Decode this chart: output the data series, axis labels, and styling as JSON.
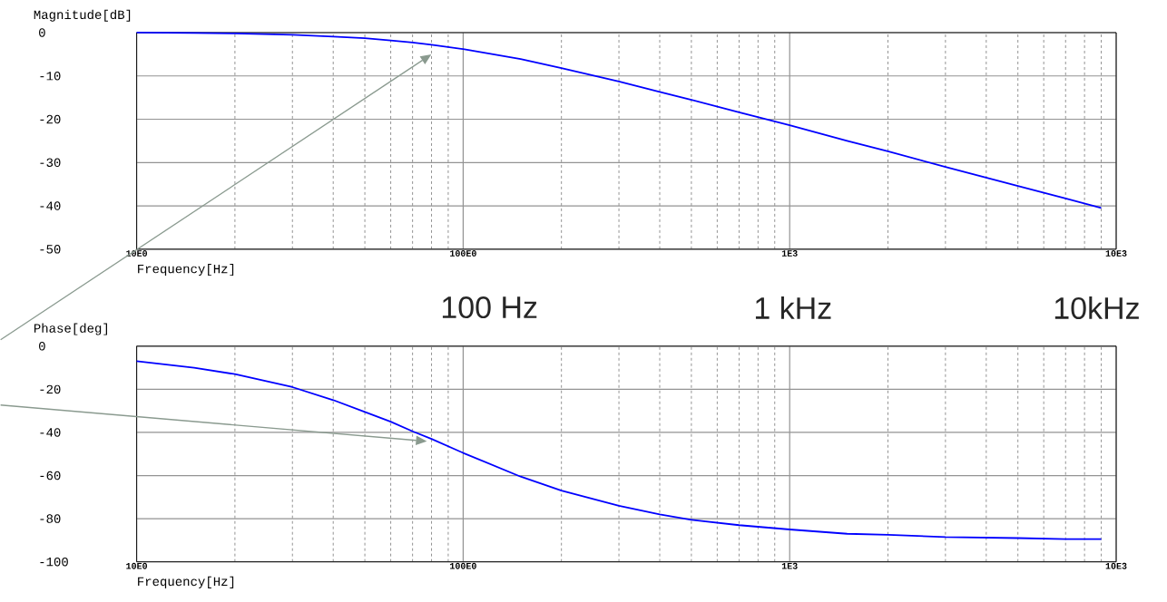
{
  "chart_data": [
    {
      "type": "line",
      "ylabel": "Magnitude[dB]",
      "xlabel": "Frequency[Hz]",
      "log": "x",
      "grid": true,
      "xlim": [
        10,
        10000
      ],
      "ylim": [
        -50,
        0
      ],
      "xticks": [
        {
          "value": 10,
          "label": "10E0"
        },
        {
          "value": 100,
          "label": "100E0"
        },
        {
          "value": 1000,
          "label": "1E3"
        },
        {
          "value": 10000,
          "label": "10E3"
        }
      ],
      "yticks": [
        0,
        -10,
        -20,
        -30,
        -40,
        -50
      ],
      "annotations": [
        "100 Hz",
        "1 kHz",
        "10kHz"
      ],
      "series": [
        {
          "color": "#0000ff",
          "x": [
            10,
            15,
            20,
            30,
            40,
            50,
            60,
            70,
            80,
            100,
            150,
            200,
            300,
            400,
            500,
            700,
            1000,
            1500,
            2000,
            3000,
            5000,
            7000,
            9000
          ],
          "values": [
            0,
            -0.1,
            -0.2,
            -0.5,
            -0.9,
            -1.3,
            -1.8,
            -2.3,
            -2.8,
            -3.8,
            -6.1,
            -8.2,
            -11.3,
            -13.7,
            -15.5,
            -18.4,
            -21.4,
            -25,
            -27.4,
            -31,
            -35.4,
            -38.3,
            -40.5
          ]
        }
      ]
    },
    {
      "type": "line",
      "ylabel": "Phase[deg]",
      "xlabel": "Frequency[Hz]",
      "log": "x",
      "grid": true,
      "xlim": [
        10,
        10000
      ],
      "ylim": [
        -100,
        0
      ],
      "xticks": [
        {
          "value": 10,
          "label": "10E0"
        },
        {
          "value": 100,
          "label": "100E0"
        },
        {
          "value": 1000,
          "label": "1E3"
        },
        {
          "value": 10000,
          "label": "10E3"
        }
      ],
      "yticks": [
        0,
        -20,
        -40,
        -60,
        -80,
        -100
      ],
      "series": [
        {
          "color": "#0000ff",
          "x": [
            10,
            15,
            20,
            30,
            40,
            50,
            60,
            70,
            80,
            100,
            150,
            200,
            300,
            400,
            500,
            700,
            1000,
            1500,
            2000,
            3000,
            5000,
            7000,
            9000
          ],
          "values": [
            -7,
            -10,
            -13,
            -19,
            -25,
            -30.5,
            -35,
            -39.5,
            -43,
            -49.5,
            -60.5,
            -67,
            -74,
            -78,
            -80.5,
            -83,
            -85,
            -87,
            -87.5,
            -88.5,
            -89,
            -89.5,
            -89.5
          ]
        }
      ]
    }
  ]
}
